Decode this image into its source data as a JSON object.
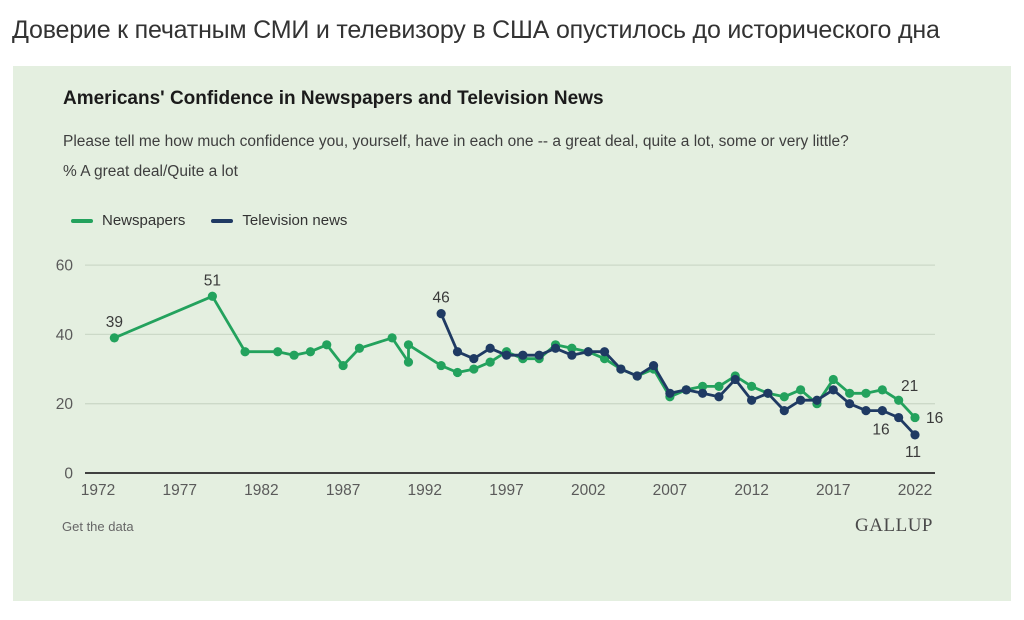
{
  "headline": "Доверие к печатным СМИ и телевизору в США опустилось до исторического дна",
  "panel": {
    "title": "Americans' Confidence in Newspapers and Television News",
    "question": "Please tell me how much confidence you, yourself, have in each one -- a great deal, quite a lot, some or very little?",
    "measure": "% A great deal/Quite a lot",
    "legend": [
      {
        "label": "Newspapers",
        "color": "#23A25D"
      },
      {
        "label": "Television news",
        "color": "#1F3A63"
      }
    ],
    "footer": {
      "link": "Get the data",
      "brand": "GALLUP"
    }
  },
  "colors": {
    "panel_bg": "#E4EFE0",
    "grid": "#CCD9C8",
    "axis": "#404040",
    "tick_text": "#5A5A5A",
    "annotation_text": "#3A3A3A",
    "newspapers": "#23A25D",
    "television": "#1F3A63"
  },
  "chart_data": {
    "type": "line",
    "title": "Americans' Confidence in Newspapers and Television News",
    "ylabel": "% A great deal/Quite a lot",
    "ylim": [
      0,
      60
    ],
    "yticks": [
      0,
      20,
      40,
      60
    ],
    "xticks": [
      1972,
      1977,
      1982,
      1987,
      1992,
      1997,
      2002,
      2007,
      2012,
      2017,
      2022
    ],
    "grid": "horizontal-only",
    "legend_position": "top-left",
    "series": [
      {
        "name": "Newspapers",
        "color": "#23A25D",
        "points": [
          [
            1973,
            39
          ],
          [
            1979,
            51
          ],
          [
            1981,
            35
          ],
          [
            1983,
            35
          ],
          [
            1984,
            34
          ],
          [
            1985,
            35
          ],
          [
            1986,
            37
          ],
          [
            1987,
            31
          ],
          [
            1988,
            36
          ],
          [
            1990,
            39
          ],
          [
            1991,
            32
          ],
          [
            1991,
            37
          ],
          [
            1993,
            31
          ],
          [
            1994,
            29
          ],
          [
            1995,
            30
          ],
          [
            1996,
            32
          ],
          [
            1997,
            35
          ],
          [
            1998,
            33
          ],
          [
            1999,
            33
          ],
          [
            2000,
            37
          ],
          [
            2001,
            36
          ],
          [
            2002,
            35
          ],
          [
            2003,
            33
          ],
          [
            2004,
            30
          ],
          [
            2005,
            28
          ],
          [
            2006,
            30
          ],
          [
            2007,
            22
          ],
          [
            2008,
            24
          ],
          [
            2009,
            25
          ],
          [
            2010,
            25
          ],
          [
            2011,
            28
          ],
          [
            2012,
            25
          ],
          [
            2013,
            23
          ],
          [
            2014,
            22
          ],
          [
            2015,
            24
          ],
          [
            2016,
            20
          ],
          [
            2017,
            27
          ],
          [
            2018,
            23
          ],
          [
            2019,
            23
          ],
          [
            2020,
            24
          ],
          [
            2021,
            21
          ],
          [
            2022,
            16
          ]
        ]
      },
      {
        "name": "Television news",
        "color": "#1F3A63",
        "points": [
          [
            1993,
            46
          ],
          [
            1994,
            35
          ],
          [
            1995,
            33
          ],
          [
            1996,
            36
          ],
          [
            1997,
            34
          ],
          [
            1998,
            34
          ],
          [
            1999,
            34
          ],
          [
            2000,
            36
          ],
          [
            2001,
            34
          ],
          [
            2002,
            35
          ],
          [
            2003,
            35
          ],
          [
            2004,
            30
          ],
          [
            2005,
            28
          ],
          [
            2006,
            31
          ],
          [
            2007,
            23
          ],
          [
            2008,
            24
          ],
          [
            2009,
            23
          ],
          [
            2010,
            22
          ],
          [
            2011,
            27
          ],
          [
            2012,
            21
          ],
          [
            2013,
            23
          ],
          [
            2014,
            18
          ],
          [
            2015,
            21
          ],
          [
            2016,
            21
          ],
          [
            2017,
            24
          ],
          [
            2018,
            20
          ],
          [
            2019,
            18
          ],
          [
            2020,
            18
          ],
          [
            2021,
            16
          ],
          [
            2022,
            11
          ]
        ]
      }
    ],
    "annotations": [
      {
        "series": "Newspapers",
        "year": 1973,
        "value": 39,
        "label": "39",
        "position": "above"
      },
      {
        "series": "Newspapers",
        "year": 1979,
        "value": 51,
        "label": "51",
        "position": "above"
      },
      {
        "series": "Television news",
        "year": 1993,
        "value": 46,
        "label": "46",
        "position": "above"
      },
      {
        "series": "Newspapers",
        "year": 2021,
        "value": 21,
        "label": "21",
        "position": "above-right"
      },
      {
        "series": "Newspapers",
        "year": 2022,
        "value": 16,
        "label": "16",
        "position": "right"
      },
      {
        "series": "Television news",
        "year": 2021,
        "value": 16,
        "label": "16",
        "position": "below-left"
      },
      {
        "series": "Television news",
        "year": 2022,
        "value": 11,
        "label": "11",
        "position": "below"
      }
    ]
  }
}
